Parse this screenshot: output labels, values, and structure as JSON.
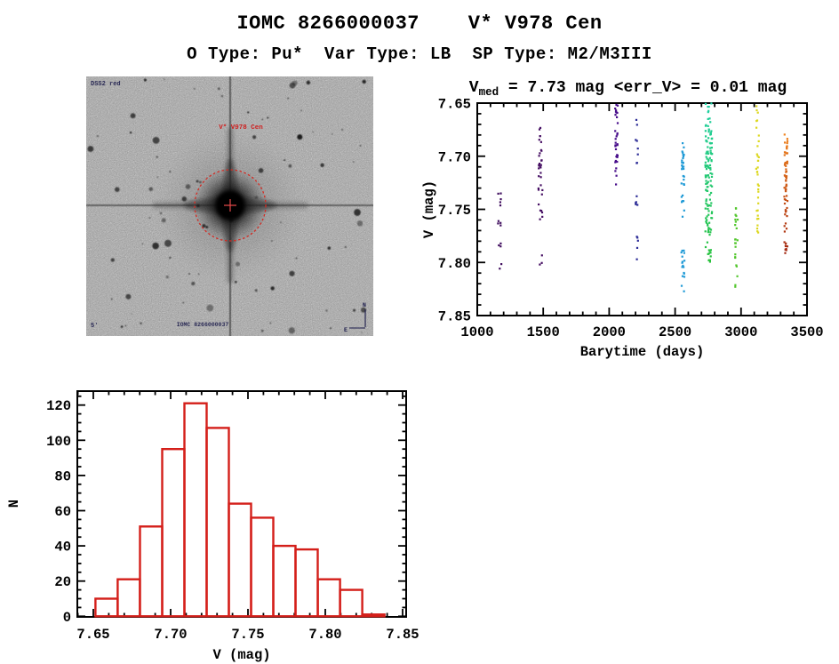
{
  "page": {
    "title": "IOMC 8266000037    V* V978 Cen",
    "subtitle": "O Type: Pu*  Var Type: LB  SP Type: M2/M3III"
  },
  "finder_chart": {
    "survey_label": "DSS2 red",
    "target_label": "V* V978 Cen",
    "source_label": "IOMC 8266000037",
    "scale_label": "5'",
    "compass_north": "N",
    "compass_east": "E",
    "annotation_color": "#d42a22",
    "label_color": "#1a1a4a",
    "background_color": "#ededed",
    "n_field_stars": 85
  },
  "chart_data": [
    {
      "type": "scatter",
      "title_parts": {
        "pre": "V",
        "sub": "med",
        "post": " = 7.73 mag <err_V> = 0.01 mag"
      },
      "xlabel": "Barytime (days)",
      "ylabel": "V (mag)",
      "xlim": [
        1000,
        3500
      ],
      "ylim": [
        7.85,
        7.65
      ],
      "x_major_ticks": [
        1000,
        1500,
        2000,
        2500,
        3000,
        3500
      ],
      "y_major_ticks": [
        7.65,
        7.7,
        7.75,
        7.8,
        7.85
      ],
      "x_minor_step": 100,
      "y_minor_step": 0.01,
      "grid": false,
      "point_shape": "square-dot",
      "clusters": [
        {
          "t": 1170,
          "t_spread": 14,
          "color_top": "#3f0d5e",
          "color_bottom": "#3f0d5e",
          "segments": [
            [
              7.735,
              7.756,
              5
            ],
            [
              7.756,
              7.776,
              4
            ],
            [
              7.776,
              7.792,
              3
            ],
            [
              7.8,
              7.806,
              2
            ]
          ]
        },
        {
          "t": 1480,
          "t_spread": 16,
          "color_top": "#460f63",
          "color_bottom": "#460f63",
          "segments": [
            [
              7.67,
              7.686,
              5
            ],
            [
              7.686,
              7.716,
              16
            ],
            [
              7.716,
              7.736,
              7
            ],
            [
              7.744,
              7.762,
              6
            ],
            [
              7.793,
              7.803,
              3
            ]
          ]
        },
        {
          "t": 2055,
          "t_spread": 10,
          "color_top": "#470d8a",
          "color_bottom": "#470d8a",
          "segments": [
            [
              7.649,
              7.666,
              9
            ],
            [
              7.666,
              7.701,
              17
            ],
            [
              7.701,
              7.727,
              7
            ]
          ]
        },
        {
          "t": 2210,
          "t_spread": 10,
          "color_top": "#2b2b96",
          "color_bottom": "#2b2b96",
          "segments": [
            [
              7.664,
              7.672,
              2
            ],
            [
              7.684,
              7.71,
              6
            ],
            [
              7.734,
              7.752,
              5
            ],
            [
              7.768,
              7.79,
              4
            ],
            [
              7.795,
              7.799,
              1
            ]
          ]
        },
        {
          "t": 2560,
          "t_spread": 12,
          "color_top": "#1f9ad6",
          "color_bottom": "#1f9ad6",
          "segments": [
            [
              7.685,
              7.697,
              4
            ],
            [
              7.697,
              7.726,
              18
            ],
            [
              7.726,
              7.746,
              7
            ],
            [
              7.75,
              7.757,
              2
            ],
            [
              7.786,
              7.806,
              11
            ],
            [
              7.806,
              7.816,
              4
            ],
            [
              7.82,
              7.83,
              2
            ]
          ]
        },
        {
          "t": 2755,
          "t_spread": 26,
          "color_top": "#1ed0a4",
          "color_bottom": "#2ac13a",
          "segments": [
            [
              7.649,
              7.666,
              8
            ],
            [
              7.666,
              7.691,
              24
            ],
            [
              7.691,
              7.731,
              55
            ],
            [
              7.731,
              7.771,
              36
            ],
            [
              7.771,
              7.803,
              16
            ]
          ]
        },
        {
          "t": 2965,
          "t_spread": 10,
          "color_top": "#52c62c",
          "color_bottom": "#52c62c",
          "segments": [
            [
              7.744,
              7.761,
              6
            ],
            [
              7.761,
              7.791,
              9
            ],
            [
              7.791,
              7.806,
              5
            ],
            [
              7.806,
              7.823,
              3
            ]
          ]
        },
        {
          "t": 3125,
          "t_spread": 10,
          "color_top": "#dcd71e",
          "color_bottom": "#dcd71e",
          "segments": [
            [
              7.651,
              7.662,
              3
            ],
            [
              7.662,
              7.681,
              4
            ],
            [
              7.681,
              7.701,
              5
            ],
            [
              7.701,
              7.731,
              9
            ],
            [
              7.731,
              7.756,
              7
            ],
            [
              7.756,
              7.776,
              6
            ]
          ]
        },
        {
          "t": 3340,
          "t_spread": 12,
          "color_top": "#f0831d",
          "color_bottom": "#9f2310",
          "segments": [
            [
              7.679,
              7.696,
              9
            ],
            [
              7.696,
              7.721,
              21
            ],
            [
              7.721,
              7.746,
              16
            ],
            [
              7.746,
              7.761,
              6
            ],
            [
              7.761,
              7.776,
              4
            ],
            [
              7.776,
              7.795,
              9
            ]
          ]
        }
      ]
    },
    {
      "type": "bar",
      "title": "",
      "xlabel": "V (mag)",
      "ylabel": "N",
      "bar_color": "#d41f1a",
      "bin_start": 7.6514,
      "bin_width": 0.014375,
      "values": [
        10,
        21,
        51,
        95,
        121,
        107,
        64,
        56,
        40,
        38,
        21,
        15,
        1
      ],
      "x_major_ticks": [
        7.65,
        7.7,
        7.75,
        7.8,
        7.85
      ],
      "y_major_ticks": [
        0,
        20,
        40,
        60,
        80,
        100,
        120
      ],
      "x_minor_step": 0.01,
      "y_minor_step": 5,
      "xlim": [
        7.6397,
        7.8523
      ],
      "ylim": [
        0,
        128
      ],
      "grid": false
    }
  ]
}
